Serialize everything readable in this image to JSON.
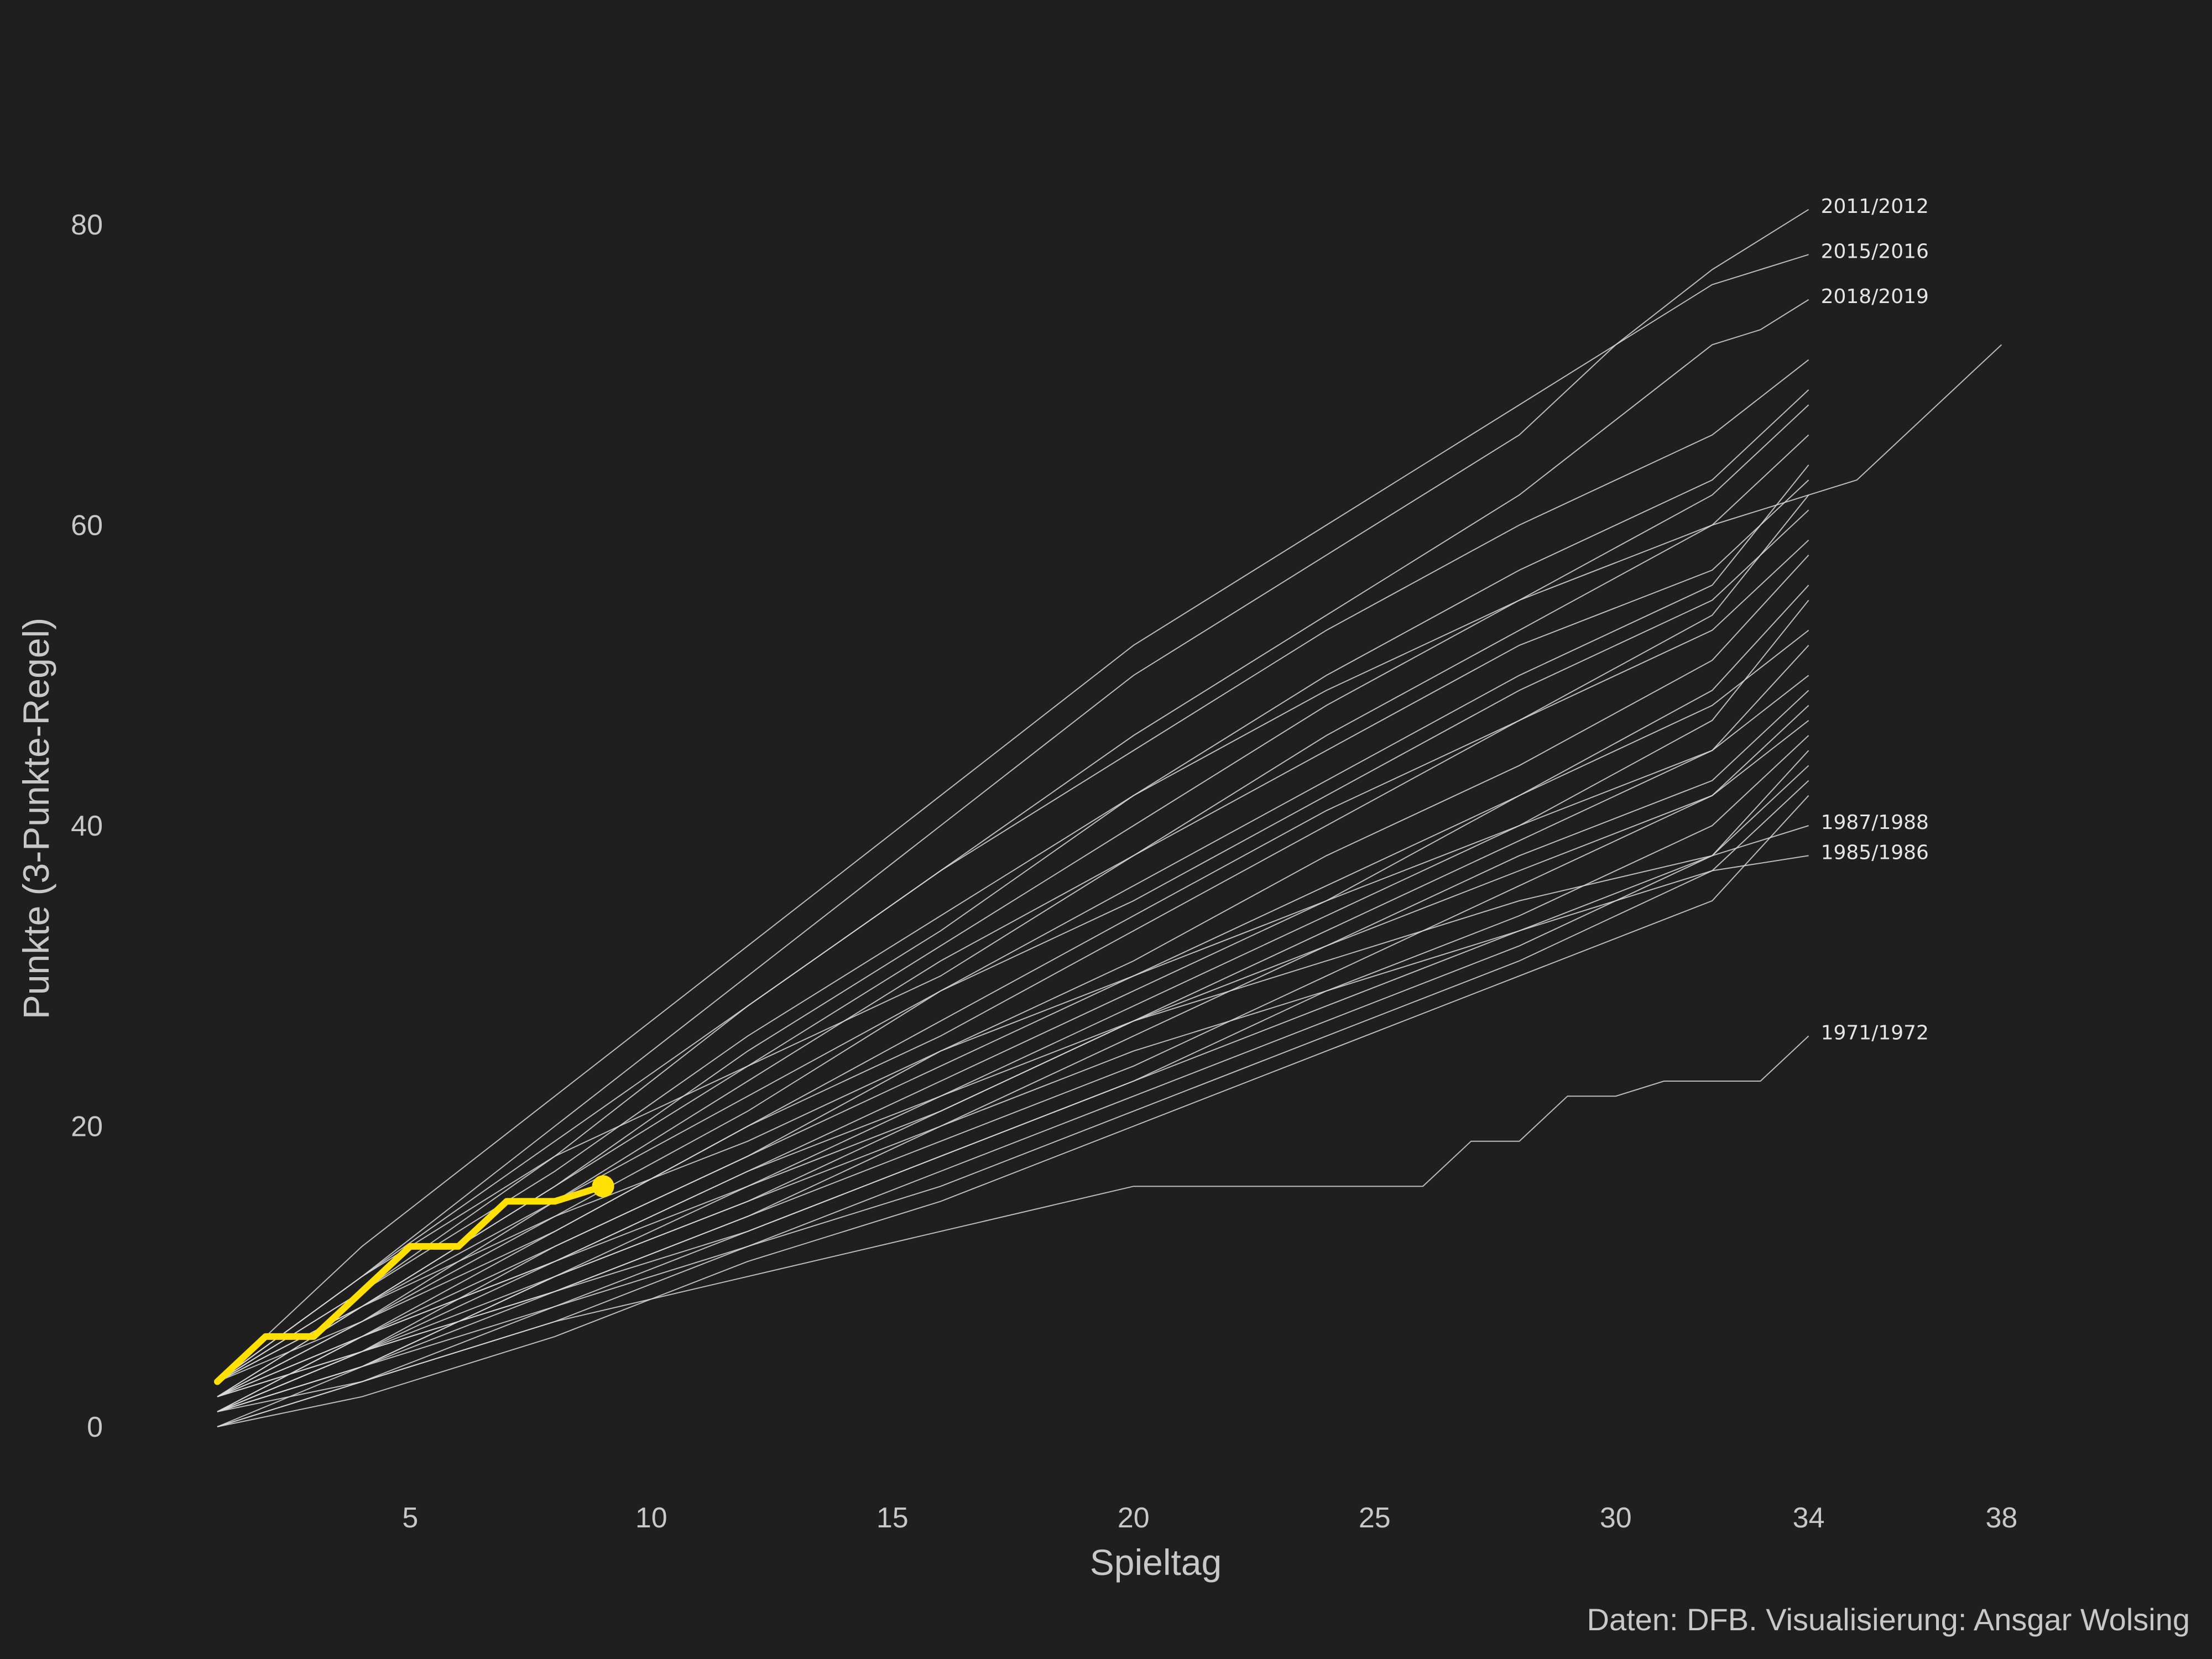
{
  "chart_data": {
    "type": "line",
    "xlabel": "Spieltag",
    "ylabel": "Punkte (3-Punkte-Regel)",
    "caption": "Daten: DFB. Visualisierung: Ansgar Wolsing",
    "xlim": [
      1,
      38
    ],
    "ylim": [
      0,
      80
    ],
    "x_ticks": [
      5,
      10,
      15,
      20,
      25,
      30,
      34,
      38
    ],
    "y_ticks": [
      0,
      20,
      40,
      60,
      80
    ],
    "grid": false,
    "background": "#1f1f1f",
    "line_color": "#d9d9d9",
    "highlight_color": "#ffe000",
    "highlight_series": {
      "x": [
        1,
        2,
        3,
        4,
        5,
        6,
        7,
        8,
        9
      ],
      "values": [
        3,
        6,
        6,
        9,
        12,
        12,
        15,
        15,
        16
      ]
    },
    "series": [
      {
        "name": "2011/2012",
        "x": [
          1,
          4,
          8,
          12,
          16,
          20,
          24,
          28,
          30,
          32,
          34
        ],
        "values": [
          3,
          12,
          22,
          32,
          42,
          52,
          60,
          68,
          72,
          77,
          81
        ],
        "label": "2011/2012"
      },
      {
        "name": "2015/2016",
        "x": [
          1,
          4,
          8,
          12,
          16,
          20,
          24,
          28,
          30,
          32,
          33,
          34
        ],
        "values": [
          3,
          10,
          20,
          30,
          40,
          50,
          58,
          66,
          72,
          76,
          77,
          78
        ],
        "label": "2015/2016"
      },
      {
        "name": "2018/2019",
        "x": [
          1,
          4,
          8,
          12,
          16,
          20,
          24,
          28,
          30,
          32,
          33,
          34
        ],
        "values": [
          3,
          9,
          18,
          28,
          37,
          46,
          54,
          62,
          67,
          72,
          73,
          75
        ],
        "label": "2018/2019"
      },
      {
        "name": "1987/1988",
        "x": [
          1,
          4,
          8,
          12,
          16,
          20,
          24,
          28,
          32,
          34
        ],
        "values": [
          1,
          5,
          11,
          17,
          22,
          27,
          31,
          35,
          38,
          40
        ],
        "label": "1987/1988"
      },
      {
        "name": "1985/1986",
        "x": [
          1,
          4,
          8,
          12,
          16,
          20,
          24,
          28,
          32,
          34
        ],
        "values": [
          1,
          4,
          10,
          15,
          20,
          25,
          29,
          33,
          37,
          38
        ],
        "label": "1985/1986"
      },
      {
        "name": "1971/1972",
        "x": [
          1,
          4,
          8,
          12,
          16,
          20,
          26,
          27,
          28,
          29,
          30,
          31,
          32,
          33,
          34
        ],
        "values": [
          0,
          3,
          7,
          10,
          13,
          16,
          16,
          19,
          19,
          22,
          22,
          23,
          23,
          23,
          26
        ],
        "label": "1971/1972"
      },
      {
        "x": [
          1,
          4,
          8,
          12,
          16,
          20,
          24,
          28,
          32,
          34,
          35,
          38
        ],
        "values": [
          2,
          8,
          16,
          25,
          33,
          42,
          49,
          55,
          60,
          62,
          63,
          72
        ]
      },
      {
        "x": [
          1,
          4,
          8,
          12,
          16,
          20,
          24,
          28,
          32,
          34
        ],
        "values": [
          3,
          10,
          19,
          28,
          37,
          45,
          53,
          60,
          66,
          71
        ]
      },
      {
        "x": [
          1,
          4,
          8,
          12,
          16,
          20,
          24,
          28,
          32,
          34
        ],
        "values": [
          3,
          9,
          17,
          26,
          34,
          42,
          50,
          57,
          63,
          69
        ]
      },
      {
        "x": [
          1,
          4,
          8,
          12,
          16,
          20,
          24,
          28,
          32,
          34
        ],
        "values": [
          2,
          8,
          16,
          24,
          32,
          40,
          48,
          55,
          62,
          68
        ]
      },
      {
        "x": [
          1,
          4,
          8,
          12,
          16,
          20,
          24,
          28,
          32,
          34
        ],
        "values": [
          3,
          8,
          15,
          23,
          31,
          38,
          46,
          53,
          60,
          66
        ]
      },
      {
        "x": [
          1,
          4,
          8,
          12,
          16,
          20,
          24,
          28,
          32,
          34
        ],
        "values": [
          2,
          7,
          14,
          21,
          29,
          36,
          43,
          50,
          56,
          64
        ]
      },
      {
        "x": [
          1,
          4,
          8,
          12,
          16,
          20,
          24,
          28,
          32,
          34
        ],
        "values": [
          1,
          6,
          13,
          20,
          27,
          34,
          41,
          47,
          54,
          62
        ]
      },
      {
        "x": [
          1,
          4,
          8,
          12,
          16,
          20,
          24,
          28,
          32,
          34
        ],
        "values": [
          3,
          7,
          13,
          20,
          26,
          33,
          40,
          47,
          53,
          59
        ]
      },
      {
        "x": [
          1,
          4,
          8,
          12,
          16,
          20,
          24,
          28,
          32,
          34
        ],
        "values": [
          2,
          6,
          12,
          18,
          25,
          31,
          38,
          44,
          51,
          58
        ]
      },
      {
        "x": [
          1,
          4,
          8,
          12,
          16,
          20,
          24,
          28,
          32,
          34
        ],
        "values": [
          1,
          6,
          11,
          17,
          23,
          29,
          35,
          42,
          49,
          56
        ]
      },
      {
        "x": [
          1,
          4,
          8,
          12,
          16,
          20,
          24,
          28,
          32,
          34
        ],
        "values": [
          2,
          5,
          10,
          16,
          22,
          28,
          34,
          40,
          47,
          55
        ]
      },
      {
        "x": [
          1,
          4,
          8,
          12,
          16,
          20,
          24,
          28,
          32,
          34
        ],
        "values": [
          0,
          4,
          10,
          15,
          21,
          27,
          33,
          39,
          45,
          52
        ]
      },
      {
        "x": [
          1,
          4,
          8,
          12,
          16,
          20,
          24,
          28,
          32,
          34
        ],
        "values": [
          1,
          4,
          9,
          14,
          20,
          26,
          32,
          38,
          43,
          49
        ]
      },
      {
        "x": [
          1,
          4,
          8,
          12,
          16,
          20,
          24,
          28,
          32,
          34
        ],
        "values": [
          2,
          5,
          9,
          14,
          19,
          24,
          30,
          36,
          42,
          48
        ]
      },
      {
        "x": [
          1,
          4,
          8,
          12,
          16,
          20,
          24,
          28,
          32,
          34
        ],
        "values": [
          1,
          3,
          8,
          13,
          18,
          23,
          29,
          34,
          40,
          46
        ]
      },
      {
        "x": [
          1,
          4,
          8,
          12,
          16,
          20,
          24,
          28,
          32,
          34
        ],
        "values": [
          0,
          3,
          7,
          12,
          17,
          22,
          27,
          32,
          38,
          44
        ]
      },
      {
        "x": [
          1,
          4,
          8,
          12,
          16,
          20,
          24,
          28,
          32,
          34
        ],
        "values": [
          1,
          4,
          8,
          12,
          16,
          21,
          26,
          31,
          37,
          43
        ]
      },
      {
        "x": [
          1,
          4,
          8,
          12,
          16,
          20,
          24,
          28,
          32,
          34
        ],
        "values": [
          0,
          2,
          6,
          11,
          15,
          20,
          25,
          30,
          35,
          42
        ]
      },
      {
        "x": [
          1,
          4,
          8,
          12,
          16,
          20,
          24,
          28,
          32,
          34
        ],
        "values": [
          3,
          10,
          18,
          24,
          30,
          38,
          45,
          52,
          57,
          63
        ]
      },
      {
        "x": [
          1,
          4,
          8,
          12,
          16,
          20,
          24,
          28,
          32,
          34
        ],
        "values": [
          2,
          7,
          15,
          22,
          29,
          35,
          42,
          49,
          55,
          61
        ]
      },
      {
        "x": [
          1,
          4,
          8,
          12,
          16,
          20,
          24,
          28,
          32,
          34
        ],
        "values": [
          1,
          5,
          12,
          18,
          24,
          30,
          36,
          42,
          48,
          53
        ]
      },
      {
        "x": [
          1,
          4,
          8,
          12,
          16,
          20,
          24,
          28,
          32,
          34
        ],
        "values": [
          3,
          8,
          14,
          19,
          25,
          30,
          35,
          40,
          45,
          50
        ]
      },
      {
        "x": [
          1,
          4,
          8,
          12,
          16,
          20,
          24,
          28,
          32,
          34
        ],
        "values": [
          2,
          6,
          11,
          16,
          21,
          27,
          32,
          37,
          42,
          47
        ]
      },
      {
        "x": [
          1,
          4,
          8,
          12,
          16,
          20,
          24,
          28,
          32,
          34
        ],
        "values": [
          1,
          5,
          9,
          13,
          18,
          23,
          28,
          33,
          38,
          45
        ]
      }
    ]
  }
}
